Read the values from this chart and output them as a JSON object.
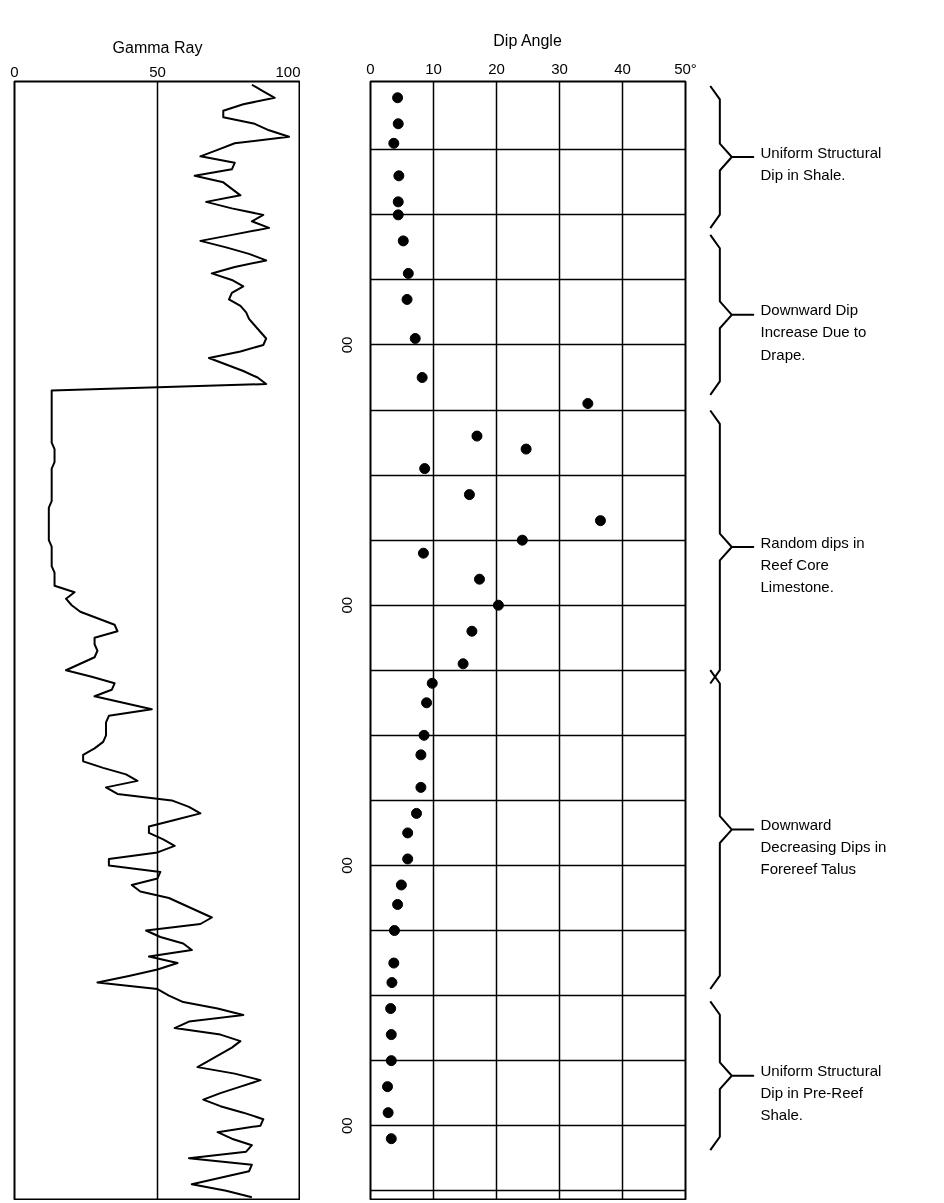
{
  "chart_data": [
    {
      "type": "line",
      "orientation": "horizontal",
      "xlabel": "Gamma Ray",
      "color": "#000000",
      "categories": [
        null,
        null,
        null,
        null,
        null,
        null,
        null,
        null,
        null,
        null,
        null,
        null,
        null,
        null,
        null,
        null,
        null,
        null,
        null,
        null,
        null,
        null,
        null,
        null,
        null,
        null,
        null,
        null,
        null,
        null,
        null,
        null,
        null,
        null,
        null,
        null,
        null,
        null,
        null,
        null,
        null,
        null,
        null,
        null,
        null,
        null,
        null,
        null,
        null,
        null,
        null,
        null,
        null,
        null,
        null,
        null,
        null,
        null,
        null,
        null,
        null,
        null,
        null,
        null,
        null,
        null,
        null,
        null,
        null,
        null,
        null,
        null,
        null,
        null,
        null,
        null,
        null,
        null,
        null,
        null,
        null,
        null,
        null,
        null,
        null,
        null,
        null,
        null,
        null,
        null,
        null,
        null,
        null,
        null,
        null,
        null,
        null,
        null,
        null,
        null,
        null,
        null,
        null,
        null,
        null,
        null,
        null,
        null,
        null,
        null,
        null,
        null,
        null,
        null,
        null,
        null,
        null,
        null,
        null,
        null,
        null,
        null,
        null,
        null,
        null,
        null,
        null,
        null,
        null,
        null,
        null,
        null,
        null,
        null,
        null,
        null,
        null,
        null,
        null,
        null,
        null,
        null,
        null,
        null,
        null,
        null,
        null,
        null,
        null,
        null,
        null,
        null,
        null,
        null,
        null,
        null,
        null,
        null,
        null,
        null,
        null,
        null,
        null,
        null,
        null,
        null,
        null,
        null,
        null,
        null,
        null,
        null
      ],
      "values": [
        83,
        87,
        91,
        80,
        73,
        73,
        84,
        89,
        96,
        77,
        71,
        65,
        77,
        76,
        63,
        73,
        76,
        79,
        67,
        76,
        87,
        83,
        89,
        77,
        65,
        74,
        82,
        88,
        77,
        69,
        76,
        80,
        76,
        75,
        79,
        81,
        82,
        84,
        86,
        88,
        87,
        79,
        68,
        74,
        80,
        85,
        88,
        13,
        13,
        13,
        13,
        13,
        13,
        13,
        13,
        13,
        14,
        14,
        14,
        13,
        13,
        13,
        13,
        13,
        13,
        12,
        12,
        12,
        12,
        12,
        12,
        13,
        13,
        13,
        13,
        14,
        14,
        14,
        21,
        18,
        20,
        23,
        29,
        35,
        36,
        28,
        28,
        29,
        28,
        23,
        18,
        27,
        35,
        34,
        28,
        38,
        48,
        33,
        32,
        32,
        32,
        31,
        28,
        24,
        24,
        31,
        39,
        43,
        32,
        36,
        55,
        61,
        65,
        56,
        47,
        47,
        52,
        56,
        50,
        33,
        33,
        51,
        50,
        41,
        44,
        54,
        59,
        64,
        69,
        65,
        46,
        51,
        59,
        62,
        47,
        57,
        50,
        40,
        29,
        50,
        54,
        59,
        71,
        80,
        61,
        56,
        72,
        79,
        76,
        72,
        68,
        64,
        77,
        86,
        79,
        72,
        66,
        72,
        80,
        87,
        86,
        71,
        76,
        83,
        81,
        61,
        83,
        82,
        72,
        62,
        74,
        83
      ],
      "xlim": [
        0,
        100
      ],
      "xticks": [
        0,
        50,
        100
      ],
      "grid": "x",
      "tick_labels": "x"
    },
    {
      "type": "scatter",
      "orientation": "horizontal",
      "xlabel": "Dip Angle",
      "color": "#000000",
      "marker": "circle",
      "categories": [
        null,
        null,
        null,
        null,
        null,
        null,
        null,
        null,
        null,
        null,
        null,
        null,
        null,
        null,
        null,
        null,
        null,
        null,
        null,
        null,
        null,
        null,
        null,
        null,
        null,
        null,
        null,
        null,
        null,
        null,
        null,
        null,
        null,
        null,
        null,
        null,
        null,
        null,
        null,
        null,
        "00",
        null,
        null,
        null,
        null,
        null,
        null,
        null,
        null,
        null,
        null,
        null,
        null,
        null,
        null,
        null,
        null,
        null,
        null,
        null,
        null,
        null,
        null,
        null,
        null,
        null,
        null,
        null,
        null,
        null,
        null,
        null,
        null,
        null,
        null,
        null,
        null,
        null,
        null,
        null,
        "00",
        null,
        null,
        null,
        null,
        null,
        null,
        null,
        null,
        null,
        null,
        null,
        null,
        null,
        null,
        null,
        null,
        null,
        null,
        null,
        null,
        null,
        null,
        null,
        null,
        null,
        null,
        null,
        null,
        null,
        null,
        null,
        null,
        null,
        null,
        null,
        null,
        null,
        null,
        null,
        "00",
        null,
        null,
        null,
        null,
        null,
        null,
        null,
        null,
        null,
        null,
        null,
        null,
        null,
        null,
        null,
        null,
        null,
        null,
        null,
        null,
        null,
        null,
        null,
        null,
        null,
        null,
        null,
        null,
        null,
        null,
        null,
        null,
        null,
        null,
        null,
        null,
        null,
        null,
        null,
        "00",
        null,
        null,
        null,
        null,
        null,
        null,
        null,
        null,
        null,
        null,
        null
      ],
      "values": [
        null,
        null,
        4.3,
        null,
        null,
        null,
        4.4,
        null,
        null,
        3.7,
        null,
        null,
        null,
        null,
        4.5,
        null,
        null,
        null,
        4.4,
        null,
        4.4,
        null,
        null,
        null,
        5.2,
        null,
        null,
        null,
        null,
        6.0,
        null,
        null,
        null,
        5.8,
        null,
        null,
        null,
        null,
        null,
        7.1,
        null,
        null,
        null,
        null,
        null,
        8.2,
        null,
        null,
        null,
        34.5,
        null,
        null,
        null,
        null,
        16.9,
        null,
        24.7,
        null,
        null,
        8.6,
        null,
        null,
        null,
        15.7,
        null,
        null,
        null,
        36.5,
        null,
        null,
        24.1,
        null,
        8.4,
        null,
        null,
        null,
        17.3,
        null,
        null,
        null,
        20.3,
        null,
        null,
        null,
        16.1,
        null,
        null,
        null,
        null,
        14.7,
        null,
        null,
        9.8,
        null,
        null,
        8.9,
        null,
        null,
        null,
        null,
        8.5,
        null,
        null,
        8.0,
        null,
        null,
        null,
        null,
        8.0,
        null,
        null,
        null,
        7.3,
        null,
        null,
        5.9,
        null,
        null,
        null,
        5.9,
        null,
        null,
        null,
        4.9,
        null,
        null,
        4.3,
        null,
        null,
        null,
        3.8,
        null,
        null,
        null,
        null,
        3.7,
        null,
        null,
        3.4,
        null,
        null,
        null,
        3.2,
        null,
        null,
        null,
        3.3,
        null,
        null,
        null,
        3.3,
        null,
        null,
        null,
        2.7,
        null,
        null,
        null,
        2.8,
        null,
        null,
        null,
        3.3,
        null,
        null,
        null,
        null,
        null,
        null,
        null,
        null,
        null
      ],
      "xlim": [
        0,
        50
      ],
      "xticks": [
        0,
        10,
        20,
        30,
        40,
        {
          "value": 50,
          "label": "50°"
        }
      ],
      "grid": true,
      "annotations": [
        "Uniform Structural Dip in Shale.",
        "Downward Dip Increase Due to Drape.",
        "Random dips in Reef Core Limestone.",
        "Downward Decreasing Dips in Forereef Talus",
        "Uniform Structural Dip in Pre-Reef Shale."
      ]
    }
  ]
}
